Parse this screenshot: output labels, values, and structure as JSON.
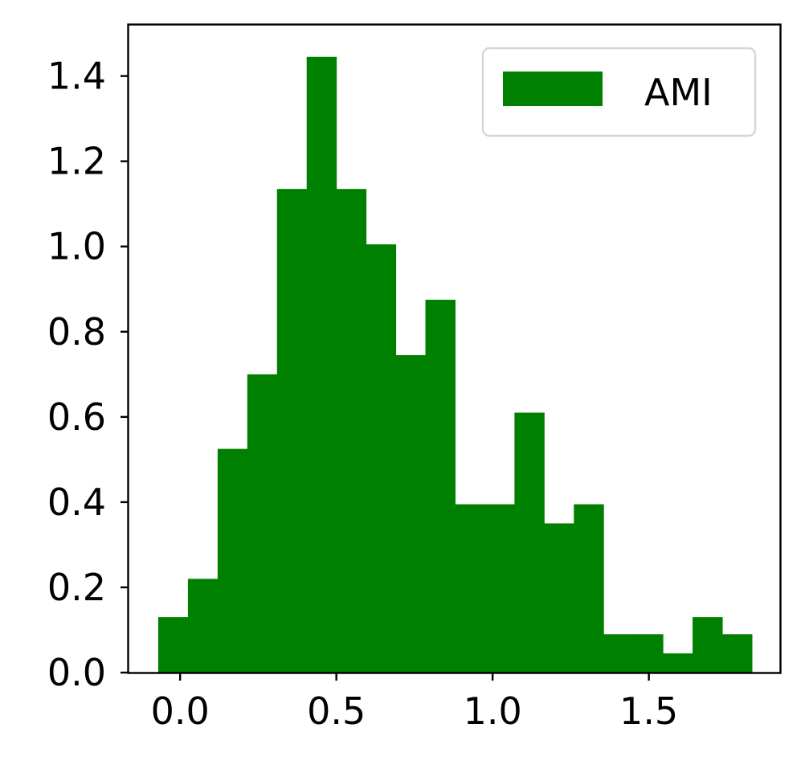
{
  "chart_data": {
    "type": "bar",
    "subtype": "histogram",
    "bin_edges": [
      -0.07,
      0.025,
      0.12,
      0.215,
      0.31,
      0.405,
      0.5,
      0.595,
      0.69,
      0.785,
      0.88,
      0.975,
      1.07,
      1.165,
      1.26,
      1.355,
      1.45,
      1.545,
      1.64,
      1.735,
      1.83
    ],
    "values": [
      0.13,
      0.22,
      0.525,
      0.7,
      1.135,
      1.445,
      1.135,
      1.005,
      0.745,
      0.875,
      0.395,
      0.395,
      0.61,
      0.35,
      0.395,
      0.09,
      0.09,
      0.045,
      0.13,
      0.09
    ],
    "xlim": [
      -0.165,
      1.92
    ],
    "ylim": [
      0.0,
      1.52
    ],
    "xticks": [
      0.0,
      0.5,
      1.0,
      1.5
    ],
    "xtick_labels": [
      "0.0",
      "0.5",
      "1.0",
      "1.5"
    ],
    "yticks": [
      0.0,
      0.2,
      0.4,
      0.6,
      0.8,
      1.0,
      1.2,
      1.4
    ],
    "ytick_labels": [
      "0.0",
      "0.2",
      "0.4",
      "0.6",
      "0.8",
      "1.0",
      "1.2",
      "1.4"
    ],
    "series": [
      {
        "name": "AMI",
        "color": "#008000"
      }
    ],
    "legend": {
      "label": "AMI",
      "placement": "top-right"
    },
    "grid": false,
    "title": "",
    "xlabel": "",
    "ylabel": ""
  }
}
